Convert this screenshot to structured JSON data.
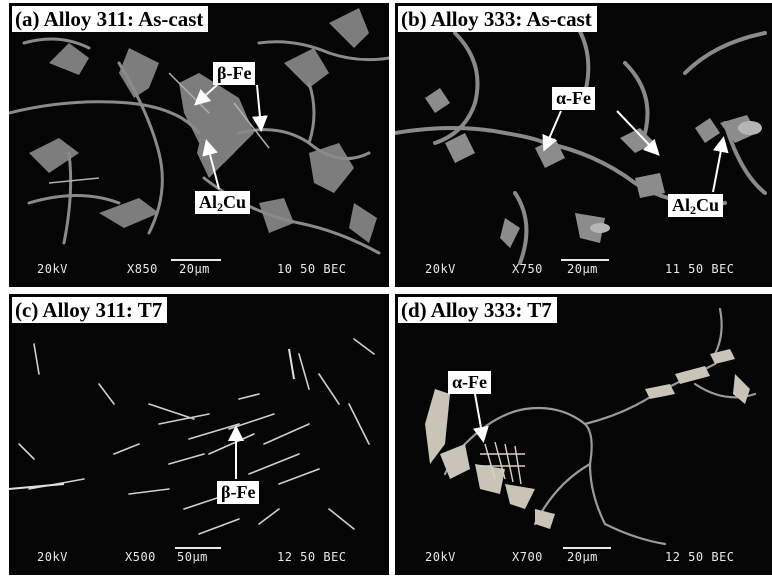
{
  "panels": {
    "a": {
      "title": "(a) Alloy 311: As-cast",
      "labels": {
        "beta_fe": "β-Fe",
        "al2cu_main": "Al",
        "al2cu_sub": "2",
        "al2cu_tail": "Cu"
      },
      "info": {
        "voltage": "20kV",
        "magnification": "X850",
        "scale": "20µm",
        "code": "10 50 BEC"
      }
    },
    "b": {
      "title": "(b) Alloy 333: As-cast",
      "labels": {
        "alpha_fe": "α-Fe",
        "al2cu_main": "Al",
        "al2cu_sub": "2",
        "al2cu_tail": "Cu"
      },
      "info": {
        "voltage": "20kV",
        "magnification": "X750",
        "scale": "20µm",
        "code": "11 50 BEC"
      }
    },
    "c": {
      "title": "(c) Alloy 311: T7",
      "labels": {
        "beta_fe": "β-Fe"
      },
      "info": {
        "voltage": "20kV",
        "magnification": "X500",
        "scale": "50µm",
        "code": "12 50 BEC"
      }
    },
    "d": {
      "title": "(d) Alloy 333: T7",
      "labels": {
        "alpha_fe": "α-Fe"
      },
      "info": {
        "voltage": "20kV",
        "magnification": "X700",
        "scale": "20µm",
        "code": "12 50 BEC"
      }
    }
  },
  "colors": {
    "background": "#050505",
    "phase": "#8c8c8c",
    "bright_phase": "#c9c9c9",
    "label_bg": "#ffffff"
  }
}
